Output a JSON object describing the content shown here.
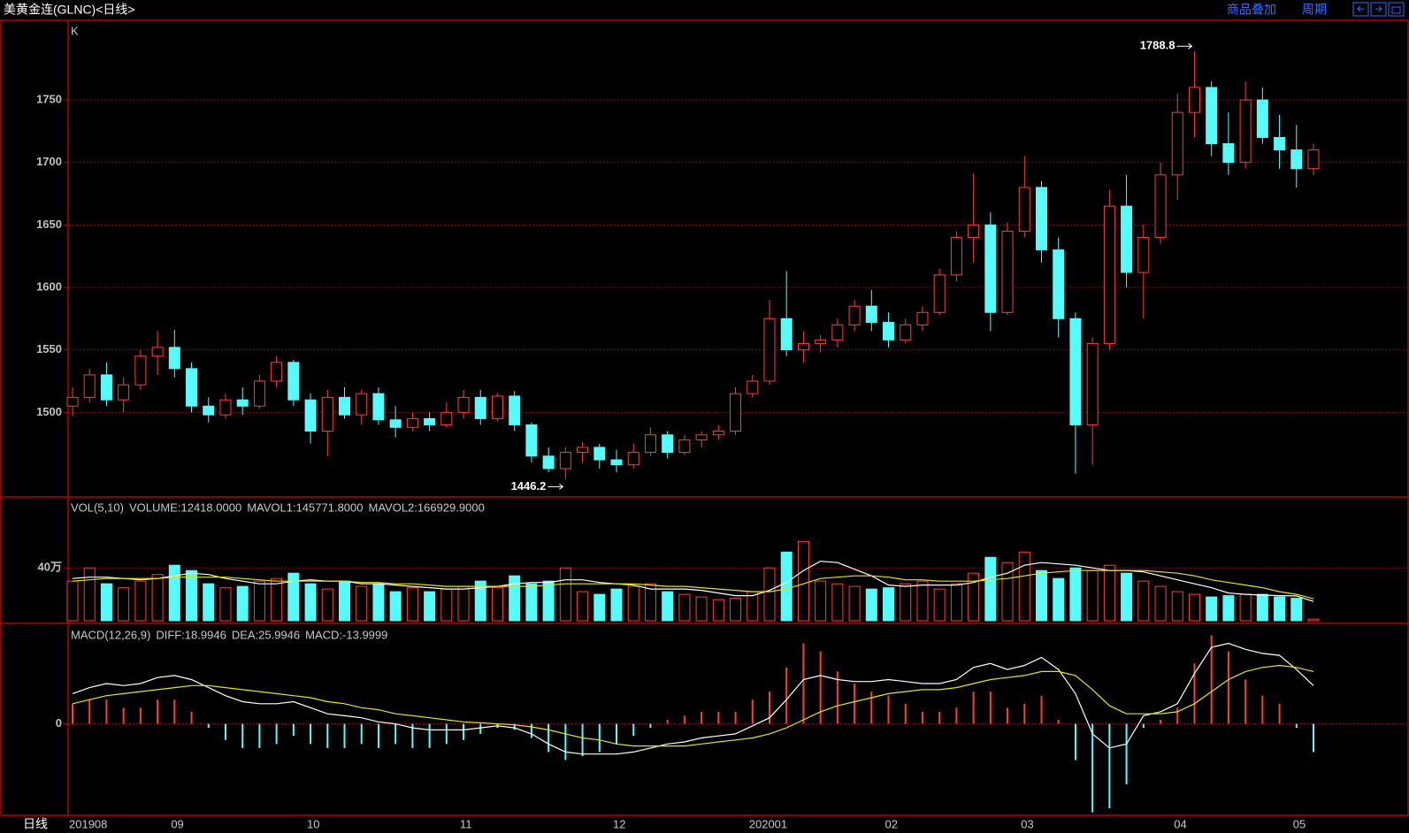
{
  "header": {
    "title": "美黄金连(GLNC)<日线>",
    "buttons": [
      "商品叠加",
      "周期"
    ]
  },
  "period_label": "日线",
  "chart_data": [
    {
      "type": "candlestick",
      "label": "K",
      "categories": [
        "201908",
        null,
        null,
        null,
        null,
        null,
        "09",
        null,
        null,
        null,
        null,
        null,
        null,
        null,
        "10",
        null,
        null,
        null,
        null,
        null,
        null,
        null,
        null,
        "11",
        null,
        null,
        null,
        null,
        null,
        null,
        null,
        null,
        "12",
        null,
        null,
        null,
        null,
        null,
        null,
        null,
        "202001",
        null,
        null,
        null,
        null,
        null,
        null,
        null,
        "02",
        null,
        null,
        null,
        null,
        null,
        null,
        null,
        "03",
        null,
        null,
        null,
        null,
        null,
        null,
        null,
        null,
        "04",
        null,
        null,
        null,
        null,
        null,
        null,
        "05",
        null
      ],
      "ohlc": [
        [
          1505,
          1520,
          1497,
          1512
        ],
        [
          1512,
          1535,
          1508,
          1530
        ],
        [
          1530,
          1540,
          1505,
          1510
        ],
        [
          1510,
          1528,
          1500,
          1522
        ],
        [
          1522,
          1550,
          1518,
          1545
        ],
        [
          1545,
          1565,
          1530,
          1552
        ],
        [
          1552,
          1566,
          1528,
          1535
        ],
        [
          1535,
          1540,
          1500,
          1505
        ],
        [
          1505,
          1512,
          1492,
          1498
        ],
        [
          1498,
          1515,
          1495,
          1510
        ],
        [
          1510,
          1520,
          1498,
          1505
        ],
        [
          1505,
          1530,
          1503,
          1525
        ],
        [
          1525,
          1545,
          1520,
          1540
        ],
        [
          1540,
          1542,
          1505,
          1510
        ],
        [
          1510,
          1515,
          1475,
          1485
        ],
        [
          1485,
          1518,
          1465,
          1512
        ],
        [
          1512,
          1520,
          1495,
          1498
        ],
        [
          1498,
          1518,
          1490,
          1515
        ],
        [
          1515,
          1520,
          1490,
          1494
        ],
        [
          1494,
          1505,
          1480,
          1488
        ],
        [
          1488,
          1500,
          1485,
          1495
        ],
        [
          1495,
          1500,
          1485,
          1490
        ],
        [
          1490,
          1508,
          1488,
          1500
        ],
        [
          1500,
          1518,
          1495,
          1512
        ],
        [
          1512,
          1518,
          1490,
          1495
        ],
        [
          1495,
          1515,
          1493,
          1513
        ],
        [
          1513,
          1517,
          1485,
          1490
        ],
        [
          1490,
          1492,
          1460,
          1465
        ],
        [
          1465,
          1472,
          1452,
          1455
        ],
        [
          1455,
          1472,
          1446.2,
          1468
        ],
        [
          1468,
          1476,
          1460,
          1472
        ],
        [
          1472,
          1475,
          1455,
          1462
        ],
        [
          1462,
          1470,
          1452,
          1458
        ],
        [
          1458,
          1475,
          1455,
          1468
        ],
        [
          1468,
          1488,
          1465,
          1482
        ],
        [
          1482,
          1485,
          1463,
          1468
        ],
        [
          1468,
          1482,
          1466,
          1478
        ],
        [
          1478,
          1485,
          1472,
          1482
        ],
        [
          1482,
          1490,
          1478,
          1485
        ],
        [
          1485,
          1520,
          1482,
          1515
        ],
        [
          1515,
          1530,
          1512,
          1525
        ],
        [
          1525,
          1590,
          1522,
          1575
        ],
        [
          1575,
          1613,
          1545,
          1550
        ],
        [
          1550,
          1565,
          1540,
          1555
        ],
        [
          1555,
          1562,
          1548,
          1558
        ],
        [
          1558,
          1575,
          1552,
          1570
        ],
        [
          1570,
          1590,
          1565,
          1585
        ],
        [
          1585,
          1598,
          1565,
          1572
        ],
        [
          1572,
          1580,
          1552,
          1558
        ],
        [
          1558,
          1575,
          1555,
          1570
        ],
        [
          1570,
          1585,
          1565,
          1580
        ],
        [
          1580,
          1615,
          1578,
          1610
        ],
        [
          1610,
          1645,
          1605,
          1640
        ],
        [
          1640,
          1691,
          1620,
          1650
        ],
        [
          1650,
          1660,
          1565,
          1580
        ],
        [
          1580,
          1652,
          1578,
          1645
        ],
        [
          1645,
          1705,
          1640,
          1680
        ],
        [
          1680,
          1685,
          1620,
          1630
        ],
        [
          1630,
          1640,
          1560,
          1575
        ],
        [
          1575,
          1580,
          1451,
          1490
        ],
        [
          1490,
          1560,
          1458,
          1555
        ],
        [
          1555,
          1678,
          1550,
          1665
        ],
        [
          1665,
          1690,
          1600,
          1612
        ],
        [
          1612,
          1650,
          1575,
          1640
        ],
        [
          1640,
          1700,
          1635,
          1690
        ],
        [
          1690,
          1755,
          1670,
          1740
        ],
        [
          1740,
          1788.8,
          1720,
          1760
        ],
        [
          1760,
          1765,
          1705,
          1715
        ],
        [
          1715,
          1740,
          1690,
          1700
        ],
        [
          1700,
          1765,
          1695,
          1750
        ],
        [
          1750,
          1760,
          1715,
          1720
        ],
        [
          1720,
          1738,
          1695,
          1710
        ],
        [
          1710,
          1730,
          1680,
          1695
        ],
        [
          1695,
          1715,
          1690,
          1710
        ]
      ],
      "up_color": "#ff3c3c",
      "down_color": "#54fcfc",
      "ylim": [
        1433,
        1813
      ],
      "yticks": [
        1500,
        1550,
        1600,
        1650,
        1700,
        1750
      ],
      "grid": true
    },
    {
      "type": "volume",
      "label": "VOL(5,10)",
      "title": "VOLUME:12418.0000",
      "values": [
        30,
        40,
        28,
        25,
        30,
        35,
        42,
        38,
        28,
        25,
        26,
        30,
        32,
        36,
        28,
        24,
        30,
        26,
        28,
        22,
        25,
        22,
        24,
        26,
        30,
        25,
        34,
        28,
        30,
        40,
        22,
        20,
        24,
        26,
        28,
        22,
        20,
        18,
        16,
        17,
        22,
        40,
        52,
        60,
        30,
        28,
        26,
        24,
        25,
        28,
        30,
        24,
        28,
        36,
        48,
        44,
        52,
        38,
        32,
        40,
        38,
        42,
        36,
        30,
        26,
        22,
        20,
        18,
        19,
        20,
        20,
        18,
        17,
        1.2418
      ],
      "series": [
        {
          "name": "MAVOL1:145771.8000",
          "color": "#ffffff",
          "values": [
            32,
            33,
            33,
            32,
            31,
            32,
            34,
            36,
            35,
            32,
            30,
            28,
            28,
            30,
            31,
            30,
            30,
            28,
            28,
            27,
            26,
            25,
            24,
            24,
            25,
            26,
            28,
            29,
            29,
            31,
            31,
            29,
            28,
            27,
            24,
            24,
            24,
            23,
            21,
            19,
            19,
            23,
            29,
            38,
            45,
            44,
            39,
            34,
            27,
            26,
            27,
            27,
            27,
            29,
            33,
            36,
            42,
            44,
            43,
            42,
            40,
            38,
            38,
            37,
            34,
            31,
            28,
            25,
            21,
            20,
            19.4,
            19,
            18.8,
            14.57718
          ]
        },
        {
          "name": "MAVOL2:166929.9000",
          "color": "#e6e600",
          "values": [
            30,
            31,
            32,
            32,
            32,
            32,
            33,
            33,
            33,
            33,
            32,
            31,
            30,
            30,
            30,
            30,
            30,
            29,
            29,
            28,
            28,
            27,
            26,
            26,
            26,
            26,
            26,
            26,
            27,
            28,
            28,
            28,
            28,
            28,
            27,
            26,
            26,
            25,
            24,
            23,
            22,
            22,
            24,
            28,
            32,
            33,
            34,
            34,
            33,
            31,
            31,
            30,
            30,
            30,
            31,
            32,
            34,
            36,
            37,
            38,
            38,
            38,
            38,
            38,
            37,
            36,
            34,
            31,
            29,
            27,
            25,
            22,
            20,
            16.69299
          ]
        }
      ],
      "ylim": [
        0,
        93
      ],
      "yticks": [
        {
          "value": 40,
          "label": "40万"
        }
      ],
      "grid": true
    },
    {
      "type": "macd",
      "label": "MACD(12,26,9)",
      "histogram": {
        "name": "MACD:-13.9999",
        "values": [
          10,
          12,
          12,
          8,
          8,
          12,
          12,
          6,
          -2,
          -8,
          -12,
          -12,
          -10,
          -6,
          -10,
          -12,
          -12,
          -10,
          -12,
          -10,
          -12,
          -12,
          -10,
          -8,
          -5,
          -2,
          -3,
          -7,
          -14,
          -18,
          -16,
          -14,
          -10,
          -6,
          -2,
          2,
          4,
          6,
          6,
          6,
          12,
          16,
          28,
          40,
          36,
          26,
          20,
          16,
          14,
          10,
          6,
          6,
          8,
          16,
          16,
          8,
          10,
          14,
          2,
          -18,
          -44,
          -42,
          -30,
          -2,
          2,
          8,
          30,
          44,
          36,
          22,
          14,
          10,
          -2,
          -13.9999
        ]
      },
      "series": [
        {
          "name": "DIFF:18.9946",
          "color": "#ffffff",
          "values": [
            15,
            18,
            20,
            19,
            20,
            23,
            24,
            22,
            18,
            14,
            11,
            10,
            10,
            11,
            8,
            5,
            4,
            3,
            1,
            0,
            -2,
            -3,
            -3,
            -3,
            -2,
            -1,
            -2,
            -5,
            -10,
            -14,
            -15,
            -15,
            -15,
            -14,
            -12,
            -10,
            -9,
            -7,
            -6,
            -5,
            -1,
            3,
            12,
            22,
            24,
            22,
            21,
            21,
            22,
            21,
            20,
            20,
            22,
            28,
            30,
            27,
            29,
            33,
            27,
            15,
            -5,
            -12,
            -10,
            4,
            6,
            10,
            25,
            38,
            40,
            37,
            35,
            34,
            27,
            18.9946
          ]
        },
        {
          "name": "DEA:25.9946",
          "color": "#e6e600",
          "values": [
            10,
            12,
            14,
            15,
            16,
            17,
            18,
            19,
            19,
            18,
            17,
            16,
            15,
            14,
            13,
            11,
            10,
            8,
            7,
            5,
            4,
            3,
            2,
            1,
            0.5,
            0,
            -0.5,
            -1.5,
            -3,
            -5,
            -7,
            -8,
            -10,
            -11,
            -11,
            -11,
            -11,
            -10,
            -9,
            -8,
            -7,
            -5,
            -2,
            2,
            6,
            9,
            11,
            13,
            15,
            16,
            17,
            17,
            18,
            20,
            22,
            23,
            24,
            26,
            26,
            24,
            17,
            9,
            5,
            5,
            5,
            6,
            10,
            16,
            22,
            26,
            28,
            29,
            28,
            25.9946
          ]
        }
      ],
      "up_color": "#ff3c3c",
      "down_color": "#54fcfc",
      "ylim": [
        -45,
        49
      ],
      "yticks": [
        0
      ],
      "grid": true
    }
  ]
}
